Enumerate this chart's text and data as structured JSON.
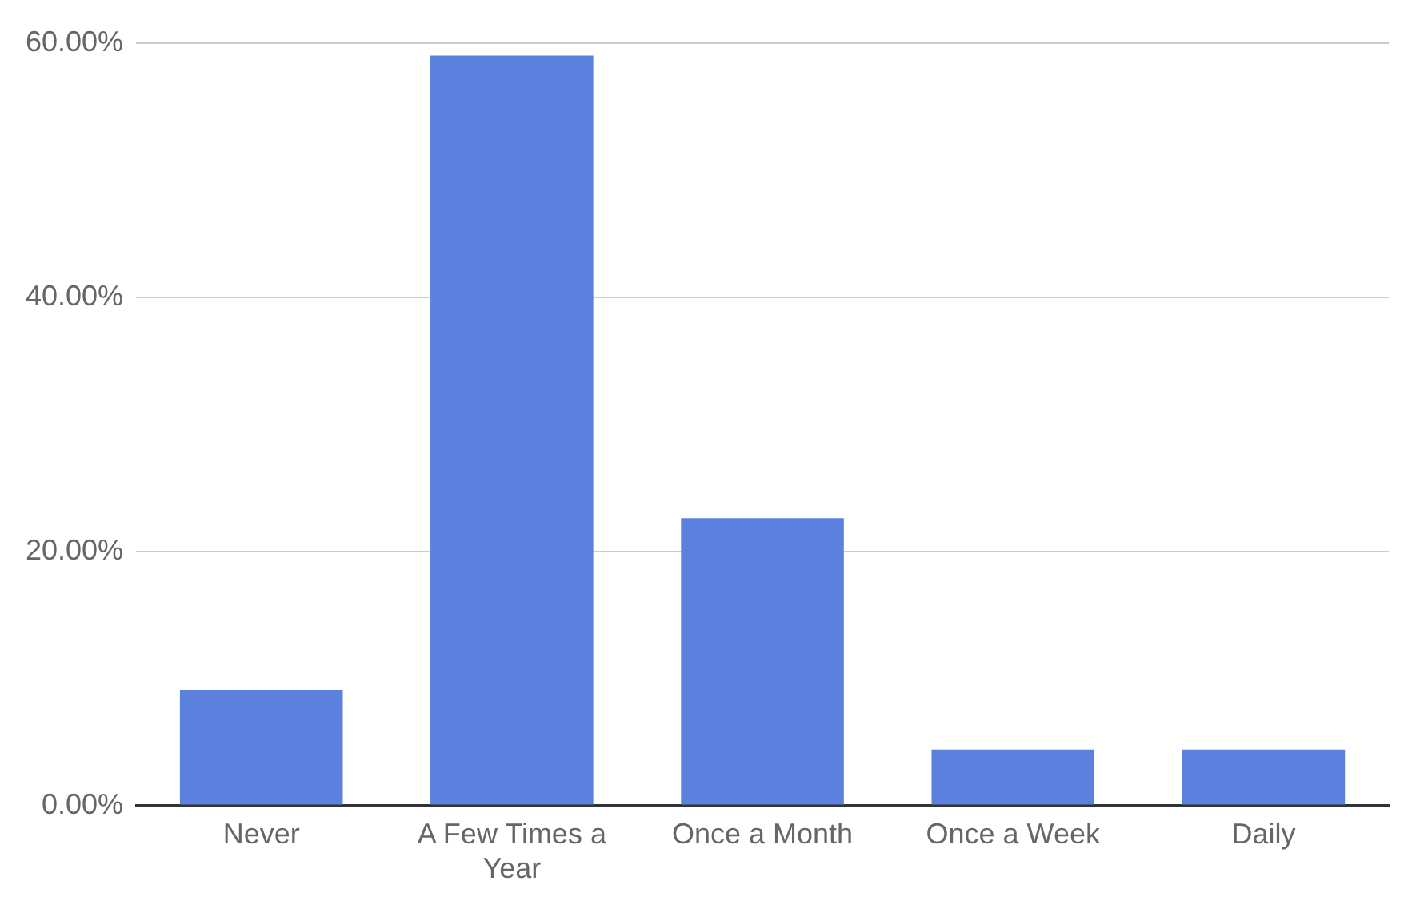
{
  "chart_data": {
    "type": "bar",
    "categories": [
      "Never",
      "A Few Times a Year",
      "Once a Month",
      "Once a Week",
      "Daily"
    ],
    "values": [
      9.1,
      59.0,
      22.6,
      4.4,
      4.4
    ],
    "color": "#5b80dd",
    "ylim": [
      0,
      60
    ],
    "yticks": [
      {
        "value": 0,
        "label": "0.00%"
      },
      {
        "value": 20,
        "label": "20.00%"
      },
      {
        "value": 40,
        "label": "40.00%"
      },
      {
        "value": 60,
        "label": "60.00%"
      }
    ],
    "grid": "y",
    "legend": false
  }
}
